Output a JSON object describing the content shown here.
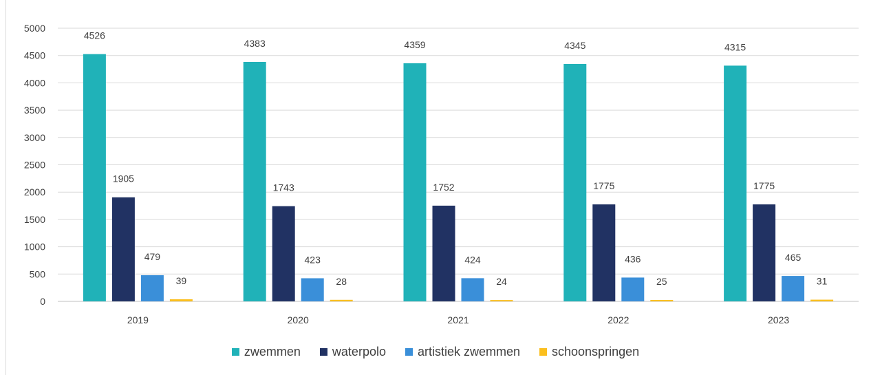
{
  "chart_data": {
    "type": "bar",
    "categories": [
      "2019",
      "2020",
      "2021",
      "2022",
      "2023"
    ],
    "series": [
      {
        "name": "zwemmen",
        "color": "#20b2b8",
        "values": [
          4526,
          4383,
          4359,
          4345,
          4315
        ]
      },
      {
        "name": "waterpolo",
        "color": "#213263",
        "values": [
          1905,
          1743,
          1752,
          1775,
          1775
        ]
      },
      {
        "name": "artistiek zwemmen",
        "color": "#3a8fd9",
        "values": [
          479,
          423,
          424,
          436,
          465
        ]
      },
      {
        "name": "schoonspringen",
        "color": "#fbbf1e",
        "values": [
          39,
          28,
          24,
          25,
          31
        ]
      }
    ],
    "ylim": [
      0,
      5000
    ],
    "yticks": [
      "0",
      "500",
      "1000",
      "1500",
      "2000",
      "2500",
      "3000",
      "3500",
      "4000",
      "4500",
      "5000"
    ],
    "grid": true,
    "legend_position": "bottom",
    "title": "",
    "xlabel": "",
    "ylabel": ""
  }
}
